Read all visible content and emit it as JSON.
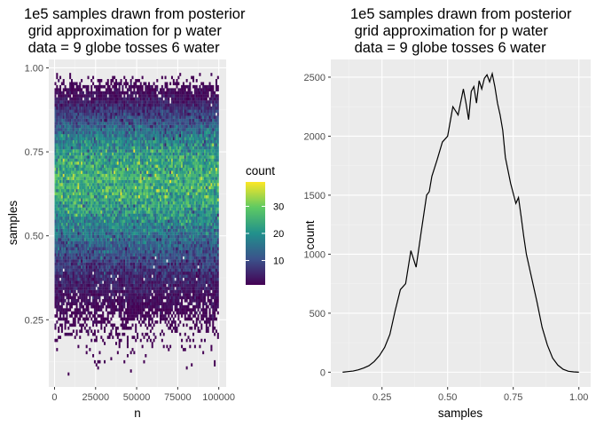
{
  "chart_data": [
    {
      "type": "heatmap",
      "title_lines": [
        "1e5 samples drawn from posterior",
        " grid approximation for p water",
        " data = 9 globe tosses 6 water"
      ],
      "xlabel": "n",
      "ylabel": "samples",
      "xlim": [
        -3500,
        104500
      ],
      "ylim": [
        0.05,
        1.025
      ],
      "xticks": [
        0,
        25000,
        50000,
        75000,
        100000
      ],
      "xtick_labels": [
        "0",
        "25000",
        "50000",
        "75000",
        "100000"
      ],
      "yticks": [
        0.25,
        0.5,
        0.75,
        1.0
      ],
      "ytick_labels": [
        "0.25",
        "0.50",
        "0.75",
        "1.00"
      ],
      "bins": {
        "x": 100,
        "y": 100,
        "sample_count": 100000
      },
      "colorscale": [
        "#440154",
        "#3b528b",
        "#21908c",
        "#5dc963",
        "#fde725"
      ],
      "legend": {
        "title": "count",
        "range": [
          1,
          39
        ],
        "ticks": [
          10,
          20,
          30
        ],
        "tick_labels": [
          "10",
          "20",
          "30"
        ],
        "placement": "right"
      },
      "grid": true,
      "panel_background": "#ebebeb"
    },
    {
      "type": "line",
      "title_lines": [
        "1e5 samples drawn from posterior",
        " grid approximation for p water",
        " data = 9 globe tosses 6 water"
      ],
      "xlabel": "samples",
      "ylabel": "count",
      "xlim": [
        0.055,
        1.045
      ],
      "ylim": [
        -125,
        2650
      ],
      "xticks": [
        0.25,
        0.5,
        0.75,
        1.0
      ],
      "xtick_labels": [
        "0.25",
        "0.50",
        "0.75",
        "1.00"
      ],
      "yticks": [
        0,
        500,
        1000,
        1500,
        2000,
        2500
      ],
      "ytick_labels": [
        "0",
        "500",
        "1000",
        "1500",
        "2000",
        "2500"
      ],
      "x": [
        0.1,
        0.12,
        0.14,
        0.16,
        0.18,
        0.2,
        0.22,
        0.24,
        0.26,
        0.28,
        0.3,
        0.32,
        0.34,
        0.36,
        0.38,
        0.4,
        0.42,
        0.43,
        0.44,
        0.46,
        0.48,
        0.5,
        0.52,
        0.54,
        0.56,
        0.57,
        0.58,
        0.59,
        0.6,
        0.61,
        0.62,
        0.63,
        0.64,
        0.65,
        0.66,
        0.67,
        0.68,
        0.69,
        0.7,
        0.71,
        0.72,
        0.74,
        0.76,
        0.77,
        0.78,
        0.79,
        0.8,
        0.82,
        0.84,
        0.86,
        0.88,
        0.9,
        0.92,
        0.94,
        0.96,
        0.98,
        1.0
      ],
      "y": [
        0,
        5,
        10,
        20,
        35,
        55,
        90,
        140,
        210,
        320,
        520,
        700,
        750,
        1030,
        890,
        1200,
        1500,
        1530,
        1660,
        1800,
        1950,
        2000,
        2250,
        2180,
        2400,
        2280,
        2140,
        2380,
        2420,
        2280,
        2470,
        2400,
        2490,
        2520,
        2460,
        2530,
        2420,
        2280,
        2180,
        2050,
        1820,
        1600,
        1430,
        1480,
        1320,
        1150,
        1000,
        800,
        600,
        380,
        230,
        120,
        60,
        25,
        8,
        3,
        0
      ],
      "color": "#000000",
      "grid": true,
      "panel_background": "#ebebeb"
    }
  ]
}
